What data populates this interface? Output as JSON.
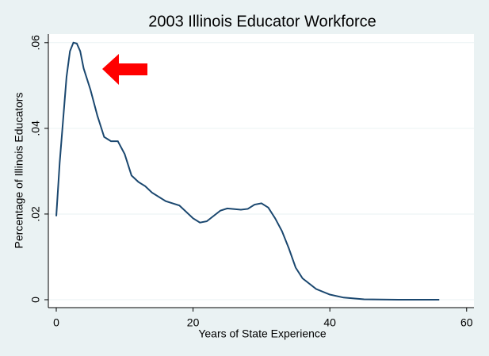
{
  "chart_data": {
    "type": "line",
    "title": "2003 Illinois Educator Workforce",
    "x_label": "Years of State Experience",
    "y_label": "Percentage of Illinois Educators",
    "x": [
      0,
      0.5,
      1,
      1.5,
      2,
      2.5,
      3,
      3.5,
      4,
      5,
      6,
      7,
      8,
      9,
      10,
      11,
      12,
      13,
      14,
      16,
      18,
      20,
      21,
      22,
      24,
      25,
      27,
      28,
      29,
      30,
      31,
      32,
      33,
      34,
      35,
      36,
      38,
      40,
      42,
      45,
      50,
      56
    ],
    "values": [
      0.0195,
      0.032,
      0.042,
      0.052,
      0.058,
      0.06,
      0.0598,
      0.058,
      0.054,
      0.049,
      0.043,
      0.038,
      0.037,
      0.037,
      0.034,
      0.029,
      0.0275,
      0.0265,
      0.025,
      0.023,
      0.022,
      0.019,
      0.018,
      0.0183,
      0.0208,
      0.0213,
      0.021,
      0.0212,
      0.0222,
      0.0225,
      0.0215,
      0.019,
      0.016,
      0.012,
      0.0075,
      0.005,
      0.0025,
      0.0012,
      0.0005,
      0.0001,
      0,
      0
    ],
    "color": "#1a476f",
    "xlim": [
      -1.16,
      61.07
    ],
    "xticks": [
      0,
      20,
      40,
      60
    ],
    "ylim": [
      -0.00185,
      0.062
    ],
    "yticks": [
      0,
      {
        "value": 0.02,
        "label": ".02"
      },
      {
        "value": 0.04,
        "label": ".04"
      },
      {
        "value": 0.06,
        "label": ".06"
      }
    ],
    "grid": true
  }
}
